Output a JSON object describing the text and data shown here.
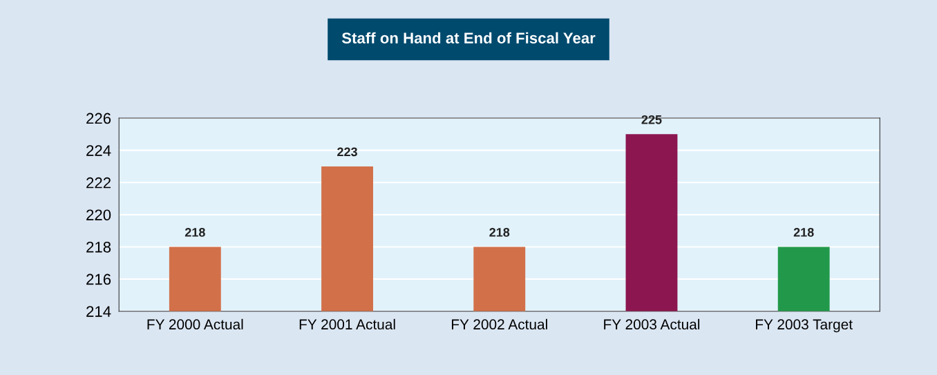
{
  "chart_data": {
    "type": "bar",
    "title": "Staff on Hand at End of Fiscal Year",
    "categories": [
      "FY 2000 Actual",
      "FY 2001 Actual",
      "FY 2002 Actual",
      "FY 2003 Actual",
      "FY 2003 Target"
    ],
    "values": [
      218,
      223,
      218,
      225,
      218
    ],
    "colors": [
      "#d2704a",
      "#d2704a",
      "#d2704a",
      "#8c1650",
      "#22994a"
    ],
    "ylim": [
      214,
      226
    ],
    "yticks": [
      214,
      216,
      218,
      220,
      222,
      224,
      226
    ],
    "grid": "y",
    "data_labels": true
  }
}
